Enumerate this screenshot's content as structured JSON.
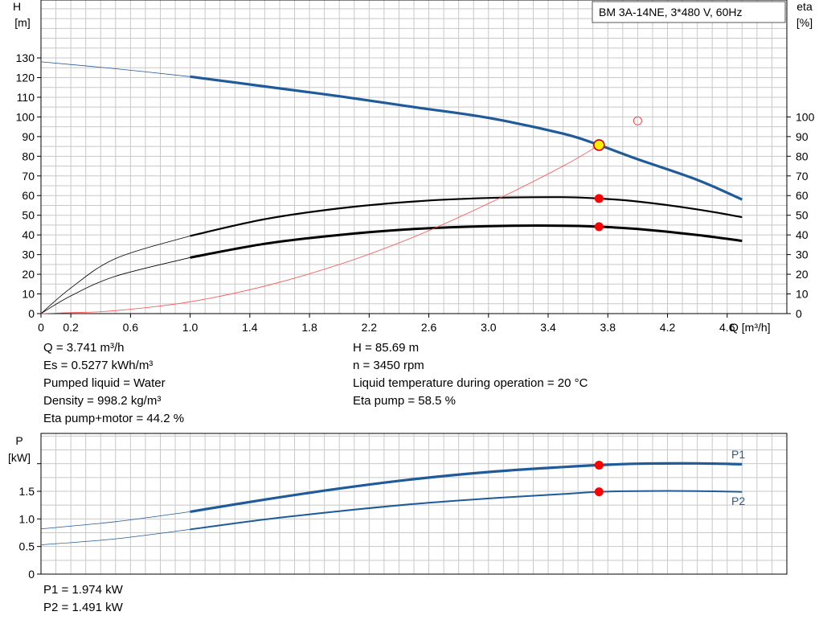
{
  "chart_data": [
    {
      "type": "line",
      "title": "BM 3A-14NE, 3*480 V, 60Hz",
      "xlabel": "Q [m³/h]",
      "ylabel_left": [
        "H",
        "[m]"
      ],
      "ylabel_right": [
        "eta",
        "[%]"
      ],
      "xlim": [
        0,
        5.0
      ],
      "ylim_left": [
        0,
        140
      ],
      "ylim_right": [
        0,
        140
      ],
      "x_ticks": [
        "0",
        "0.2",
        "0.6",
        "1.0",
        "1.4",
        "1.8",
        "2.2",
        "2.6",
        "3.0",
        "3.4",
        "3.8",
        "4.2",
        "4.6"
      ],
      "x_tick_values": [
        0,
        0.2,
        0.6,
        1.0,
        1.4,
        1.8,
        2.2,
        2.6,
        3.0,
        3.4,
        3.8,
        4.2,
        4.6
      ],
      "y_ticks_left": [
        "0",
        "10",
        "20",
        "30",
        "40",
        "50",
        "60",
        "70",
        "80",
        "90",
        "100",
        "110",
        "120",
        "130"
      ],
      "y_tick_values_left": [
        0,
        10,
        20,
        30,
        40,
        50,
        60,
        70,
        80,
        90,
        100,
        110,
        120,
        130
      ],
      "y_ticks_right": [
        "0",
        "10",
        "20",
        "30",
        "40",
        "50",
        "60",
        "70",
        "80",
        "90",
        "100"
      ],
      "y_tick_values_right": [
        0,
        10,
        20,
        30,
        40,
        50,
        60,
        70,
        80,
        90,
        100
      ],
      "grid": true,
      "series": [
        {
          "key": "H",
          "x": [
            0,
            0.5,
            1.0,
            1.5,
            2.0,
            2.5,
            3.0,
            3.5,
            3.741,
            4.0,
            4.4,
            4.7
          ],
          "values": [
            128,
            124.5,
            120.5,
            115.5,
            110.5,
            105,
            99.5,
            91.5,
            85.69,
            78.5,
            68,
            58
          ],
          "color": "#1f5a99",
          "operating_range": [
            1.0,
            4.7
          ]
        },
        {
          "key": "Eta pump",
          "x": [
            0,
            0.2,
            0.5,
            1.0,
            1.5,
            2.0,
            2.5,
            3.0,
            3.5,
            3.741,
            4.0,
            4.4,
            4.7
          ],
          "values": [
            0,
            13,
            28,
            39.5,
            48,
            53.5,
            57,
            58.8,
            59.2,
            58.5,
            57,
            53,
            49
          ],
          "color": "#000000",
          "operating_range": [
            1.0,
            4.7
          ]
        },
        {
          "key": "Eta pump+motor",
          "x": [
            0,
            0.2,
            0.5,
            1.0,
            1.5,
            2.0,
            2.5,
            3.0,
            3.5,
            3.741,
            4.0,
            4.4,
            4.7
          ],
          "values": [
            0,
            9,
            19,
            28.5,
            35.5,
            40,
            43,
            44.5,
            44.7,
            44.2,
            43,
            40,
            37
          ],
          "color": "#000000",
          "operating_range": [
            1.0,
            4.7
          ]
        },
        {
          "key": "System curve",
          "x": [
            0,
            0.2,
            0.5,
            1.0,
            1.5,
            2.0,
            2.5,
            3.0,
            3.5,
            3.741
          ],
          "values": [
            0,
            0.5,
            1.5,
            6,
            14,
            25,
            39,
            56,
            75,
            85.69
          ],
          "color": "#ff5050"
        }
      ],
      "operating_point": {
        "x": 3.741,
        "y": 85.69
      },
      "eta_points": [
        {
          "x": 3.741,
          "y": 58.5
        },
        {
          "x": 3.741,
          "y": 44.2
        }
      ],
      "requested_point": {
        "x": 4.0,
        "y": 98
      }
    },
    {
      "type": "line",
      "ylabel": [
        "P",
        "[kW]"
      ],
      "xlim": [
        0,
        5.0
      ],
      "ylim": [
        0,
        2.4
      ],
      "y_ticks": [
        "0",
        "0.5",
        "1.0",
        "1.5"
      ],
      "y_tick_values": [
        0,
        0.5,
        1.0,
        1.5
      ],
      "grid": true,
      "series": [
        {
          "key": "P1",
          "label": "P1",
          "x": [
            0,
            0.5,
            1.0,
            1.5,
            2.0,
            2.5,
            3.0,
            3.5,
            3.741,
            4.0,
            4.4,
            4.7
          ],
          "values": [
            0.82,
            0.95,
            1.13,
            1.35,
            1.55,
            1.72,
            1.85,
            1.94,
            1.974,
            2.0,
            2.005,
            1.99
          ],
          "color": "#1f5a99",
          "operating_range": [
            1.0,
            4.7
          ]
        },
        {
          "key": "P2",
          "label": "P2",
          "x": [
            0,
            0.5,
            1.0,
            1.5,
            2.0,
            2.5,
            3.0,
            3.5,
            3.741,
            4.0,
            4.4,
            4.7
          ],
          "values": [
            0.53,
            0.64,
            0.81,
            0.99,
            1.14,
            1.27,
            1.37,
            1.45,
            1.491,
            1.505,
            1.505,
            1.49
          ],
          "color": "#1f5a99",
          "operating_range": [
            1.0,
            4.7
          ]
        }
      ],
      "operating_points": [
        {
          "x": 3.741,
          "y": 1.974
        },
        {
          "x": 3.741,
          "y": 1.491
        }
      ]
    }
  ],
  "duty_info": {
    "left": [
      "Q = 3.741 m³/h",
      "Es = 0.5277 kWh/m³",
      "Pumped liquid = Water",
      "Density = 998.2 kg/m³",
      "Eta pump+motor = 44.2 %"
    ],
    "right": [
      "H = 85.69 m",
      "n = 3450 rpm",
      "Liquid temperature during operation = 20 °C",
      "Eta pump = 58.5 %"
    ]
  },
  "power_info": [
    "P1 = 1.974 kW",
    "P2 = 1.491 kW"
  ]
}
